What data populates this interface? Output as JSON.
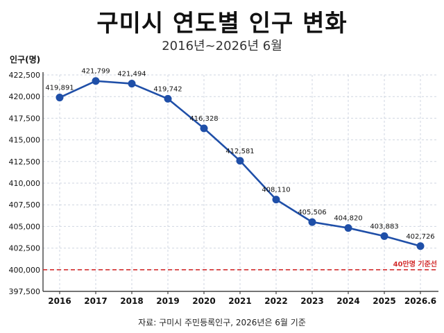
{
  "chart_data": {
    "type": "line",
    "title": "구미시 연도별 인구 변화",
    "subtitle": "2016년~2026년 6월",
    "ylabel": "인구(명)",
    "xlabel": "",
    "categories": [
      "2016",
      "2017",
      "2018",
      "2019",
      "2020",
      "2021",
      "2022",
      "2023",
      "2024",
      "2025",
      "2026.6"
    ],
    "series": [
      {
        "values": [
          419891,
          421799,
          421494,
          419742,
          416328,
          412581,
          408110,
          405506,
          404820,
          403883,
          402726
        ],
        "labels": [
          "419,891",
          "421,799",
          "421,494",
          "419,742",
          "416,328",
          "412,581",
          "408,110",
          "405,506",
          "404,820",
          "403,883",
          "402,726"
        ]
      }
    ],
    "ylim": [
      397500,
      422500
    ],
    "yticks": [
      422500,
      420000,
      417500,
      415000,
      412500,
      410000,
      407500,
      405000,
      402500,
      400000,
      397500
    ],
    "ytick_labels": [
      "422,500",
      "420,000",
      "417,500",
      "415,000",
      "412,500",
      "410,000",
      "407,500",
      "405,000",
      "402,500",
      "400,000",
      "397,500"
    ],
    "grid": true,
    "reference_line": {
      "value": 400000,
      "label": "40만명 기준선"
    },
    "source": "자료: 구미시 주민등록인구, 2026년은 6월 기준",
    "colors": {
      "line": "#1f4fa8",
      "marker": "#1f4fa8",
      "reference": "#d32f2f",
      "grid": "#cfd6e0",
      "text": "#111111"
    }
  }
}
